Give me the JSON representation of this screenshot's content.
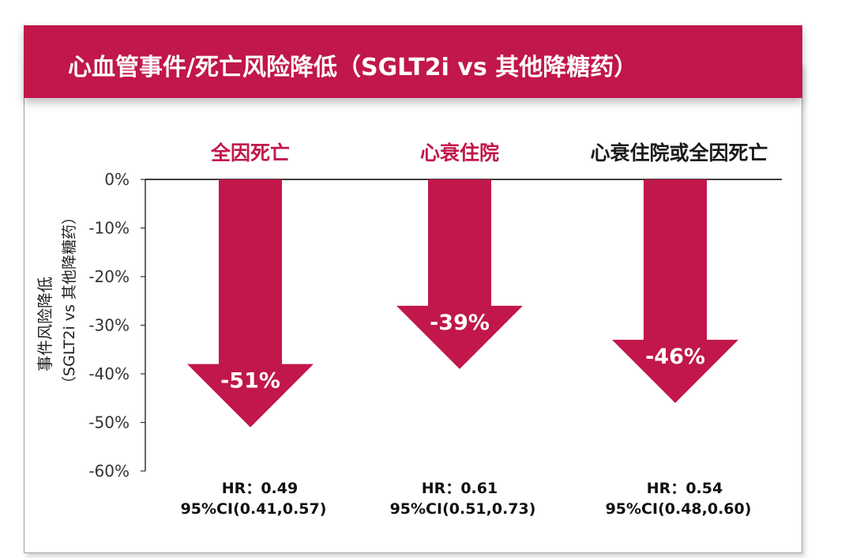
{
  "title": "心血管事件/死亡风险降低（SGLT2i vs 其他降糖药）",
  "colors": {
    "accent": "#c1174b",
    "dark_text": "#1a1a1a",
    "axis": "#333333"
  },
  "chart_data": {
    "type": "bar",
    "orientation": "down-arrows",
    "title": "心血管事件/死亡风险降低（SGLT2i vs 其他降糖药）",
    "ylabel_lines": [
      "事件风险降低",
      "（SGLT2i vs 其他降糖药）"
    ],
    "ylim": [
      -60,
      0
    ],
    "yticks": [
      0,
      -10,
      -20,
      -30,
      -40,
      -50,
      -60
    ],
    "ytick_labels": [
      "0%",
      "-10%",
      "-20%",
      "-30%",
      "-40%",
      "-50%",
      "-60%"
    ],
    "grid": false,
    "categories": [
      "全因死亡",
      "心衰住院",
      "心衰住院或全因死亡"
    ],
    "category_colors": [
      "#c1174b",
      "#c1174b",
      "#1a1a1a"
    ],
    "values": [
      -51,
      -39,
      -46
    ],
    "value_labels": [
      "-51%",
      "-39%",
      "-46%"
    ],
    "hr_labels": [
      "HR：0.49",
      "HR：0.61",
      "HR：0.54"
    ],
    "ci_labels": [
      "95%CI(0.41,0.57)",
      "95%CI(0.51,0.73)",
      "95%CI(0.48,0.60)"
    ]
  }
}
